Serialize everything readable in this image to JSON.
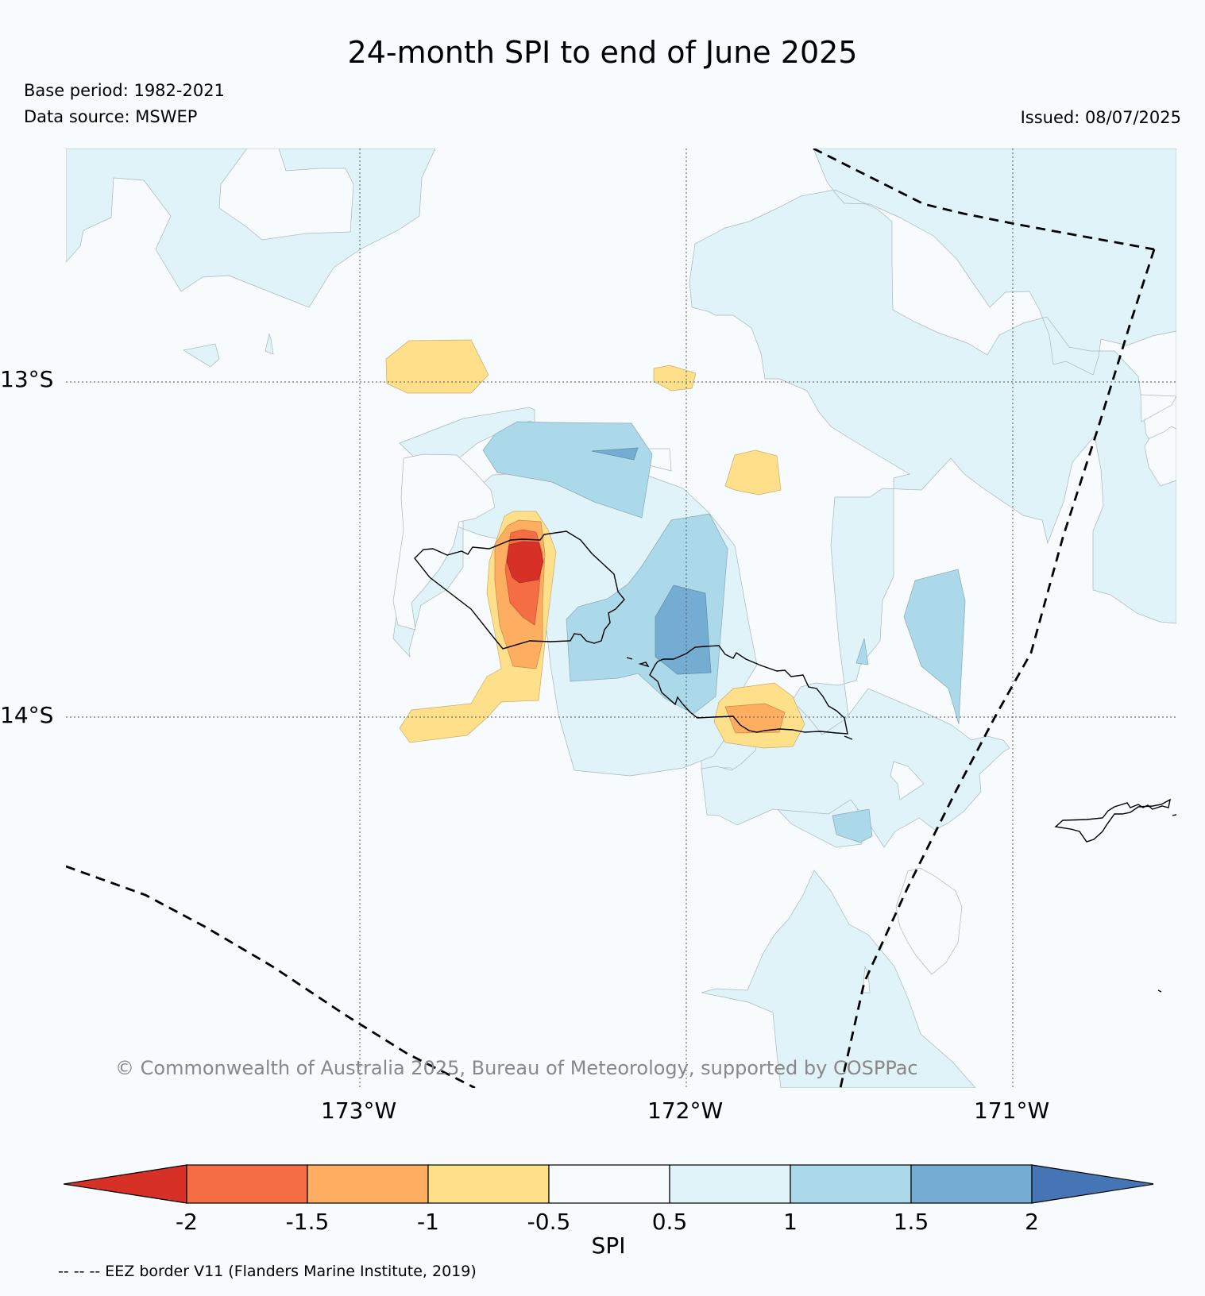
{
  "title": "24-month SPI to end of June 2025",
  "base_period": "Base period: 1982-2021",
  "data_source": "Data source: MSWEP",
  "issued": "Issued: 08/07/2025",
  "lat_ticks": [
    "13°S",
    "14°S"
  ],
  "lon_ticks": [
    "173°W",
    "172°W",
    "171°W"
  ],
  "copyright": "© Commonwealth of Australia 2025, Bureau of Meteorology, supported by COSPPac",
  "colorbar": {
    "label": "SPI",
    "ticks": [
      "-2",
      "-1.5",
      "-1",
      "-0.5",
      "0.5",
      "1",
      "1.5",
      "2"
    ],
    "colors": {
      "below_-2": "#d73027",
      "-2_-1.5": "#f46d43",
      "-1.5_-1": "#fdae61",
      "-1_-0.5": "#fee08b",
      "-0.5_0.5": "#f7fbfd",
      "0.5_1": "#e0f3f8",
      "1_1.5": "#abd9e9",
      "1.5_2": "#74add1",
      "above_2": "#4575b4"
    }
  },
  "footnote": "-- -- -- EEZ border V11 (Flanders Marine Institute, 2019)",
  "chart_data": {
    "type": "heatmap",
    "variable": "SPI",
    "lat_range": [
      "12.3°S",
      "15.1°S"
    ],
    "lon_range": [
      "173.9°W",
      "170.5°W"
    ],
    "levels": [
      -2,
      -1.5,
      -1,
      -0.5,
      0.5,
      1,
      1.5,
      2
    ],
    "grid": true
  }
}
